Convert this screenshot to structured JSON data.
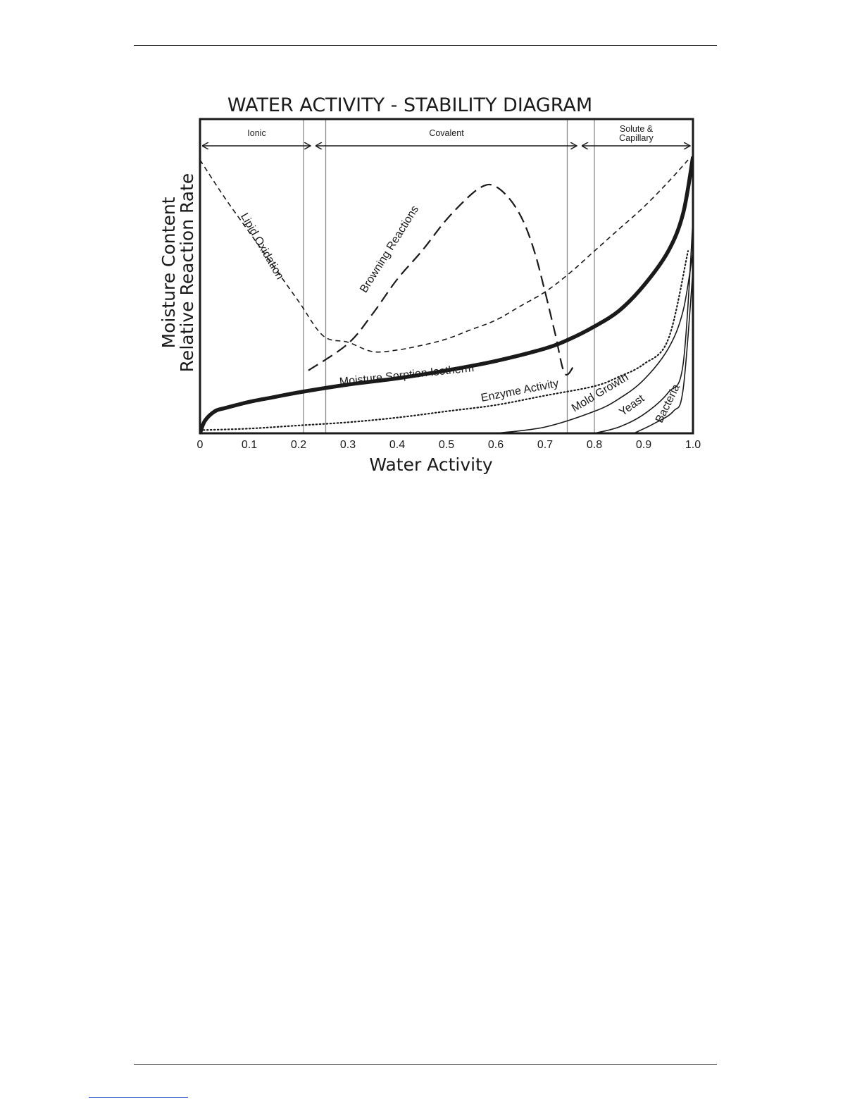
{
  "chart_data": {
    "type": "line",
    "title": "WATER ACTIVITY - STABILITY DIAGRAM",
    "xlabel": "Water Activity",
    "ylabel": [
      "Moisture Content",
      "Relative Reaction Rate"
    ],
    "xlim": [
      0,
      1.0
    ],
    "ylim": [
      0,
      1
    ],
    "y_ticks_shown": false,
    "grid": false,
    "x_ticks": [
      {
        "value": 0,
        "label": "0"
      },
      {
        "value": 0.1,
        "label": "0.1"
      },
      {
        "value": 0.2,
        "label": "0.2"
      },
      {
        "value": 0.3,
        "label": "0.3"
      },
      {
        "value": 0.4,
        "label": "0.4"
      },
      {
        "value": 0.5,
        "label": "0.5"
      },
      {
        "value": 0.6,
        "label": "0.6"
      },
      {
        "value": 0.7,
        "label": "0.7"
      },
      {
        "value": 0.8,
        "label": "0.8"
      },
      {
        "value": 0.9,
        "label": "0.9"
      },
      {
        "value": 1.0,
        "label": "1.0"
      }
    ],
    "boundary_lines": [
      0.21,
      0.255,
      0.745,
      0.8
    ],
    "regions": [
      {
        "label": [
          "Ionic"
        ],
        "from": 0,
        "to": 0.23
      },
      {
        "label": [
          "Covalent"
        ],
        "from": 0.23,
        "to": 0.77
      },
      {
        "label": [
          "Solute &",
          "Capillary"
        ],
        "from": 0.77,
        "to": 1.0
      }
    ],
    "series": [
      {
        "name": "Lipid Oxidation",
        "style": "short-dash",
        "x": [
          0.0,
          0.05,
          0.1,
          0.15,
          0.2,
          0.25,
          0.3,
          0.35,
          0.4,
          0.45,
          0.5,
          0.55,
          0.6,
          0.65,
          0.7,
          0.75,
          0.8,
          0.85,
          0.9,
          0.95,
          0.99
        ],
        "y": [
          0.87,
          0.75,
          0.64,
          0.53,
          0.42,
          0.31,
          0.29,
          0.26,
          0.265,
          0.28,
          0.3,
          0.33,
          0.36,
          0.405,
          0.45,
          0.51,
          0.58,
          0.65,
          0.72,
          0.8,
          0.87
        ]
      },
      {
        "name": "Browning Reactions",
        "style": "long-dash",
        "x": [
          0.22,
          0.3,
          0.35,
          0.4,
          0.45,
          0.5,
          0.55,
          0.58,
          0.6,
          0.62,
          0.64,
          0.66,
          0.68,
          0.7,
          0.72,
          0.74,
          0.76
        ],
        "y": [
          0.2,
          0.285,
          0.38,
          0.49,
          0.58,
          0.68,
          0.76,
          0.79,
          0.785,
          0.76,
          0.72,
          0.66,
          0.57,
          0.45,
          0.32,
          0.19,
          0.22
        ]
      },
      {
        "name": "Moisture Sorption Isotherm",
        "style": "thick",
        "x": [
          0.0,
          0.01,
          0.03,
          0.05,
          0.1,
          0.15,
          0.2,
          0.3,
          0.4,
          0.5,
          0.6,
          0.7,
          0.75,
          0.8,
          0.85,
          0.9,
          0.95,
          0.98,
          1.0
        ],
        "y": [
          0.0,
          0.04,
          0.07,
          0.08,
          0.1,
          0.115,
          0.13,
          0.155,
          0.175,
          0.2,
          0.23,
          0.27,
          0.3,
          0.34,
          0.39,
          0.47,
          0.58,
          0.7,
          0.88
        ]
      },
      {
        "name": "Enzyme Activity",
        "style": "dotted",
        "x": [
          0.0,
          0.1,
          0.2,
          0.3,
          0.4,
          0.5,
          0.6,
          0.7,
          0.8,
          0.85,
          0.9,
          0.95,
          0.99
        ],
        "y": [
          0.01,
          0.015,
          0.025,
          0.035,
          0.05,
          0.07,
          0.09,
          0.12,
          0.15,
          0.18,
          0.22,
          0.3,
          0.58
        ]
      },
      {
        "name": "Mold Growth",
        "style": "solid",
        "x": [
          0.6,
          0.7,
          0.8,
          0.85,
          0.9,
          0.95,
          0.98,
          1.0
        ],
        "y": [
          0.0,
          0.02,
          0.07,
          0.11,
          0.17,
          0.27,
          0.39,
          0.58
        ]
      },
      {
        "name": "Yeast",
        "style": "solid",
        "x": [
          0.8,
          0.85,
          0.9,
          0.95,
          0.98,
          1.0
        ],
        "y": [
          0.0,
          0.02,
          0.06,
          0.13,
          0.22,
          0.68
        ]
      },
      {
        "name": "Bacteria",
        "style": "solid",
        "x": [
          0.88,
          0.92,
          0.96,
          0.98,
          1.0
        ],
        "y": [
          0.0,
          0.03,
          0.07,
          0.14,
          0.52
        ]
      }
    ]
  }
}
